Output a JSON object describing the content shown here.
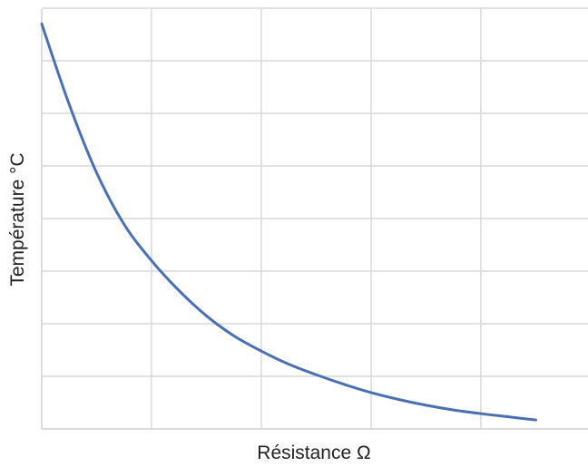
{
  "chart_data": {
    "type": "line",
    "title": "",
    "xlabel": "Résistance Ω",
    "ylabel": "Température °C",
    "xlim": [
      0,
      5
    ],
    "ylim": [
      0,
      8
    ],
    "grid": true,
    "x_tick_labels_shown": false,
    "y_tick_labels_shown": false,
    "series": [
      {
        "color": "#4a6fb5",
        "x": [
          0,
          0.25,
          0.5,
          0.75,
          1.0,
          1.25,
          1.5,
          1.75,
          2.0,
          2.25,
          2.5,
          2.75,
          3.0,
          3.25,
          3.5,
          3.75,
          4.0,
          4.25,
          4.5
        ],
        "y": [
          7.7,
          6.17,
          4.87,
          3.89,
          3.2,
          2.63,
          2.15,
          1.77,
          1.48,
          1.23,
          1.03,
          0.85,
          0.69,
          0.56,
          0.45,
          0.36,
          0.29,
          0.23,
          0.17
        ]
      }
    ]
  }
}
